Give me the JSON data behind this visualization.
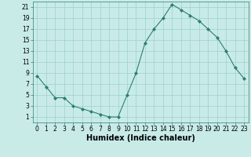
{
  "x": [
    0,
    1,
    2,
    3,
    4,
    5,
    6,
    7,
    8,
    9,
    10,
    11,
    12,
    13,
    14,
    15,
    16,
    17,
    18,
    19,
    20,
    21,
    22,
    23
  ],
  "y": [
    8.5,
    6.5,
    4.5,
    4.5,
    3.0,
    2.5,
    2.0,
    1.5,
    1.0,
    1.0,
    5.0,
    9.0,
    14.5,
    17.0,
    19.0,
    21.5,
    20.5,
    19.5,
    18.5,
    17.0,
    15.5,
    13.0,
    10.0,
    8.0
  ],
  "line_color": "#2e7d6e",
  "marker": "D",
  "marker_size": 2.0,
  "bg_color": "#c8ebe8",
  "grid_color": "#9ed0cc",
  "xlabel": "Humidex (Indice chaleur)",
  "xlim": [
    -0.5,
    23.5
  ],
  "ylim": [
    0,
    22
  ],
  "yticks": [
    1,
    3,
    5,
    7,
    9,
    11,
    13,
    15,
    17,
    19,
    21
  ],
  "xticks": [
    0,
    1,
    2,
    3,
    4,
    5,
    6,
    7,
    8,
    9,
    10,
    11,
    12,
    13,
    14,
    15,
    16,
    17,
    18,
    19,
    20,
    21,
    22,
    23
  ],
  "tick_fontsize": 5.5,
  "xlabel_fontsize": 7.0,
  "linewidth": 0.8
}
